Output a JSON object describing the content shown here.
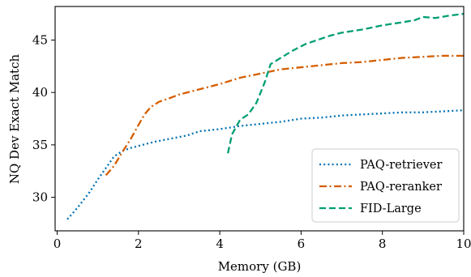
{
  "chart_data": {
    "type": "line",
    "title": "",
    "xlabel": "Memory (GB)",
    "ylabel": "NQ Dev Exact Match",
    "xlim": [
      -0.05,
      10.0
    ],
    "ylim": [
      26.8,
      48.2
    ],
    "xticks": [
      0,
      2,
      4,
      6,
      8,
      10
    ],
    "yticks": [
      30,
      35,
      40,
      45
    ],
    "grid": false,
    "legend_position": "lower-right",
    "series": [
      {
        "name": "PAQ-retriever",
        "color": "#0072b2",
        "dash": "dotted",
        "points": [
          [
            0.25,
            27.9
          ],
          [
            0.5,
            29.0
          ],
          [
            0.8,
            30.5
          ],
          [
            1.0,
            31.7
          ],
          [
            1.2,
            32.8
          ],
          [
            1.4,
            33.9
          ],
          [
            1.6,
            34.4
          ],
          [
            1.8,
            34.7
          ],
          [
            2.0,
            34.9
          ],
          [
            2.4,
            35.3
          ],
          [
            2.8,
            35.6
          ],
          [
            3.2,
            35.9
          ],
          [
            3.5,
            36.3
          ],
          [
            4.0,
            36.5
          ],
          [
            4.5,
            36.8
          ],
          [
            5.0,
            37.0
          ],
          [
            5.5,
            37.2
          ],
          [
            6.0,
            37.5
          ],
          [
            6.5,
            37.6
          ],
          [
            7.0,
            37.8
          ],
          [
            7.5,
            37.9
          ],
          [
            8.0,
            38.0
          ],
          [
            8.5,
            38.1
          ],
          [
            9.0,
            38.1
          ],
          [
            9.5,
            38.2
          ],
          [
            10.0,
            38.3
          ]
        ]
      },
      {
        "name": "PAQ-reranker",
        "color": "#d55e00",
        "dash": "dashdot",
        "points": [
          [
            1.2,
            32.1
          ],
          [
            1.4,
            33.0
          ],
          [
            1.6,
            34.3
          ],
          [
            1.8,
            35.5
          ],
          [
            2.0,
            36.9
          ],
          [
            2.15,
            37.9
          ],
          [
            2.3,
            38.6
          ],
          [
            2.5,
            39.1
          ],
          [
            2.8,
            39.5
          ],
          [
            3.0,
            39.8
          ],
          [
            3.5,
            40.3
          ],
          [
            4.0,
            40.8
          ],
          [
            4.5,
            41.4
          ],
          [
            5.0,
            41.8
          ],
          [
            5.5,
            42.2
          ],
          [
            6.0,
            42.4
          ],
          [
            6.5,
            42.6
          ],
          [
            7.0,
            42.8
          ],
          [
            7.5,
            42.9
          ],
          [
            8.0,
            43.1
          ],
          [
            8.5,
            43.3
          ],
          [
            9.0,
            43.4
          ],
          [
            9.5,
            43.5
          ],
          [
            10.0,
            43.5
          ]
        ]
      },
      {
        "name": "FID-Large",
        "color": "#009e73",
        "dash": "dashed",
        "points": [
          [
            4.2,
            34.2
          ],
          [
            4.3,
            36.0
          ],
          [
            4.5,
            37.4
          ],
          [
            4.7,
            37.9
          ],
          [
            4.9,
            39.0
          ],
          [
            5.1,
            40.9
          ],
          [
            5.25,
            42.7
          ],
          [
            5.5,
            43.3
          ],
          [
            5.8,
            44.0
          ],
          [
            6.1,
            44.6
          ],
          [
            6.4,
            45.0
          ],
          [
            6.7,
            45.4
          ],
          [
            7.0,
            45.7
          ],
          [
            7.5,
            46.0
          ],
          [
            8.0,
            46.4
          ],
          [
            8.5,
            46.7
          ],
          [
            8.8,
            46.9
          ],
          [
            9.0,
            47.2
          ],
          [
            9.3,
            47.1
          ],
          [
            9.6,
            47.3
          ],
          [
            10.0,
            47.5
          ]
        ]
      }
    ]
  }
}
